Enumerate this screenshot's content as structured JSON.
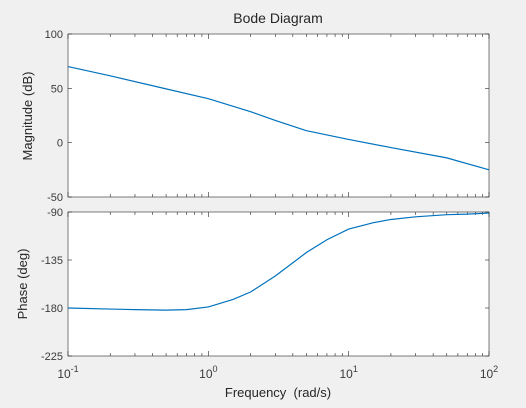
{
  "figure": {
    "title": "Bode Diagram",
    "background": "#f0f0f0",
    "line_color": "#0072bd"
  },
  "chart_data": [
    {
      "type": "line",
      "title": "Bode Diagram",
      "xlabel": "",
      "ylabel": "Magnitude (dB)",
      "xscale": "log",
      "xlim": [
        0.1,
        100
      ],
      "ylim": [
        -50,
        100
      ],
      "yticks": [
        -50,
        0,
        50,
        100
      ],
      "yticklabels": [
        "-50",
        "0",
        "50",
        "100"
      ],
      "grid": false,
      "series": [
        {
          "x": [
            0.1,
            0.2,
            0.5,
            1,
            2,
            3,
            5,
            10,
            20,
            50,
            100
          ],
          "y": [
            70,
            61.5,
            49.5,
            40.5,
            28.5,
            20.5,
            11,
            3,
            -4.5,
            -14,
            -25
          ]
        }
      ]
    },
    {
      "type": "line",
      "title": "",
      "xlabel": "Frequency  (rad/s)",
      "ylabel": "Phase (deg)",
      "xscale": "log",
      "xlim": [
        0.1,
        100
      ],
      "ylim": [
        -225,
        -90
      ],
      "yticks": [
        -225,
        -180,
        -135,
        -90
      ],
      "yticklabels": [
        "-225",
        "-180",
        "-135",
        "-90"
      ],
      "xticks": [
        0.1,
        1,
        10,
        100
      ],
      "xtick_bases": [
        "10",
        "10",
        "10",
        "10"
      ],
      "xtick_exponents": [
        "-1",
        "0",
        "1",
        "2"
      ],
      "grid": false,
      "series": [
        {
          "x": [
            0.1,
            0.2,
            0.3,
            0.5,
            0.7,
            1,
            1.5,
            2,
            3,
            5,
            7,
            10,
            15,
            20,
            30,
            50,
            70,
            100
          ],
          "y": [
            -180,
            -181,
            -181.5,
            -182,
            -181.5,
            -179,
            -172,
            -165,
            -150,
            -128,
            -116,
            -106,
            -100,
            -97,
            -94.5,
            -92.5,
            -92,
            -91
          ]
        }
      ]
    }
  ]
}
